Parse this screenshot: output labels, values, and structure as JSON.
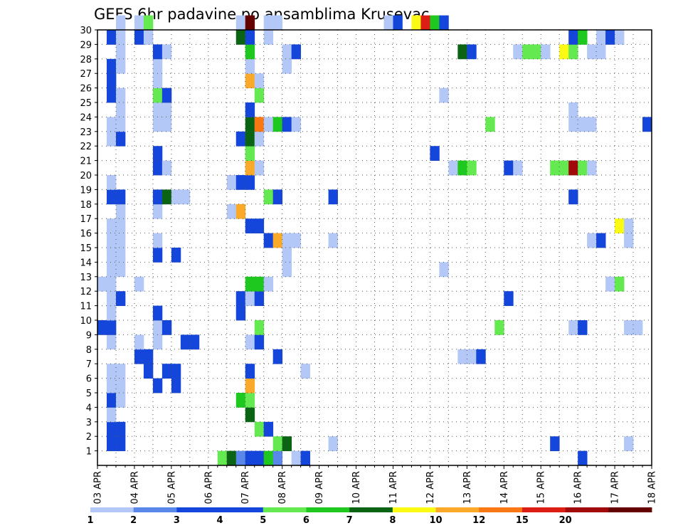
{
  "chart_data": {
    "type": "heatmap",
    "title": "GEFS 6hr padavine po ansamblima Krusevac",
    "xlabel": "",
    "ylabel": "",
    "x_tick_labels": [
      "03 APR",
      "04 APR",
      "05 APR",
      "06 APR",
      "07 APR",
      "08 APR",
      "09 APR",
      "10 APR",
      "11 APR",
      "12 APR",
      "13 APR",
      "14 APR",
      "15 APR",
      "16 APR",
      "17 APR",
      "18 APR"
    ],
    "y_tick_labels": [
      "1",
      "2",
      "3",
      "4",
      "5",
      "6",
      "7",
      "8",
      "9",
      "10",
      "11",
      "12",
      "13",
      "14",
      "15",
      "16",
      "17",
      "18",
      "19",
      "20",
      "21",
      "22",
      "23",
      "24",
      "25",
      "26",
      "27",
      "28",
      "29",
      "30"
    ],
    "x_range_6h_steps": [
      0,
      60
    ],
    "y_range_members": [
      0,
      30
    ],
    "grid": true,
    "colorbar": {
      "position": "bottom",
      "levels": [
        "1",
        "2",
        "3",
        "4",
        "5",
        "6",
        "7",
        "8",
        "10",
        "12",
        "15",
        "20"
      ],
      "colors": [
        "#b4c8f8",
        "#5a87ea",
        "#1446dc",
        "#1446dc",
        "#64ea50",
        "#1ec81e",
        "#0a6414",
        "#fafa14",
        "#faaa28",
        "#fa7814",
        "#dc1e14",
        "#a00a0a",
        "#640000"
      ]
    },
    "cells": [
      {
        "m": 0,
        "t": 13,
        "c": 4
      },
      {
        "m": 0,
        "t": 14,
        "c": 6
      },
      {
        "m": 0,
        "t": 15,
        "c": 1
      },
      {
        "m": 0,
        "t": 16,
        "c": 2
      },
      {
        "m": 0,
        "t": 17,
        "c": 3
      },
      {
        "m": 0,
        "t": 18,
        "c": 5
      },
      {
        "m": 0,
        "t": 19,
        "c": 1
      },
      {
        "m": 0,
        "t": 21,
        "c": 0
      },
      {
        "m": 0,
        "t": 22,
        "c": 3
      },
      {
        "m": 0,
        "t": 52,
        "c": 3
      },
      {
        "m": 1,
        "t": 1,
        "c": 2
      },
      {
        "m": 1,
        "t": 2,
        "c": 2
      },
      {
        "m": 1,
        "t": 19,
        "c": 4
      },
      {
        "m": 1,
        "t": 20,
        "c": 6
      },
      {
        "m": 1,
        "t": 25,
        "c": 0
      },
      {
        "m": 1,
        "t": 49,
        "c": 3
      },
      {
        "m": 1,
        "t": 57,
        "c": 0
      },
      {
        "m": 2,
        "t": 1,
        "c": 3
      },
      {
        "m": 2,
        "t": 2,
        "c": 2
      },
      {
        "m": 2,
        "t": 17,
        "c": 4
      },
      {
        "m": 2,
        "t": 18,
        "c": 3
      },
      {
        "m": 3,
        "t": 1,
        "c": 0
      },
      {
        "m": 3,
        "t": 16,
        "c": 6
      },
      {
        "m": 4,
        "t": 1,
        "c": 3
      },
      {
        "m": 4,
        "t": 2,
        "c": 0
      },
      {
        "m": 4,
        "t": 15,
        "c": 5
      },
      {
        "m": 4,
        "t": 16,
        "c": 4
      },
      {
        "m": 5,
        "t": 1,
        "c": 0
      },
      {
        "m": 5,
        "t": 2,
        "c": 0
      },
      {
        "m": 5,
        "t": 6,
        "c": 3
      },
      {
        "m": 5,
        "t": 8,
        "c": 2
      },
      {
        "m": 5,
        "t": 16,
        "c": 8
      },
      {
        "m": 6,
        "t": 1,
        "c": 0
      },
      {
        "m": 6,
        "t": 2,
        "c": 0
      },
      {
        "m": 6,
        "t": 5,
        "c": 2
      },
      {
        "m": 6,
        "t": 7,
        "c": 2
      },
      {
        "m": 6,
        "t": 8,
        "c": 2
      },
      {
        "m": 6,
        "t": 16,
        "c": 3
      },
      {
        "m": 6,
        "t": 22,
        "c": 0
      },
      {
        "m": 7,
        "t": 4,
        "c": 2
      },
      {
        "m": 7,
        "t": 5,
        "c": 3
      },
      {
        "m": 7,
        "t": 19,
        "c": 3
      },
      {
        "m": 7,
        "t": 39,
        "c": 0
      },
      {
        "m": 7,
        "t": 40,
        "c": 0
      },
      {
        "m": 7,
        "t": 41,
        "c": 2
      },
      {
        "m": 8,
        "t": 1,
        "c": 0
      },
      {
        "m": 8,
        "t": 4,
        "c": 0
      },
      {
        "m": 8,
        "t": 6,
        "c": 0
      },
      {
        "m": 8,
        "t": 9,
        "c": 3
      },
      {
        "m": 8,
        "t": 10,
        "c": 3
      },
      {
        "m": 8,
        "t": 16,
        "c": 0
      },
      {
        "m": 8,
        "t": 17,
        "c": 2
      },
      {
        "m": 9,
        "t": 0,
        "c": 2
      },
      {
        "m": 9,
        "t": 1,
        "c": 2
      },
      {
        "m": 9,
        "t": 6,
        "c": 0
      },
      {
        "m": 9,
        "t": 7,
        "c": 2
      },
      {
        "m": 9,
        "t": 17,
        "c": 4
      },
      {
        "m": 9,
        "t": 43,
        "c": 4
      },
      {
        "m": 9,
        "t": 51,
        "c": 0
      },
      {
        "m": 9,
        "t": 52,
        "c": 3
      },
      {
        "m": 9,
        "t": 57,
        "c": 0
      },
      {
        "m": 9,
        "t": 58,
        "c": 0
      },
      {
        "m": 10,
        "t": 1,
        "c": 0
      },
      {
        "m": 10,
        "t": 6,
        "c": 2
      },
      {
        "m": 10,
        "t": 15,
        "c": 3
      },
      {
        "m": 11,
        "t": 1,
        "c": 0
      },
      {
        "m": 11,
        "t": 2,
        "c": 2
      },
      {
        "m": 11,
        "t": 15,
        "c": 3
      },
      {
        "m": 11,
        "t": 16,
        "c": 0
      },
      {
        "m": 11,
        "t": 17,
        "c": 2
      },
      {
        "m": 11,
        "t": 44,
        "c": 2
      },
      {
        "m": 12,
        "t": 0,
        "c": 0
      },
      {
        "m": 12,
        "t": 1,
        "c": 0
      },
      {
        "m": 12,
        "t": 4,
        "c": 0
      },
      {
        "m": 12,
        "t": 16,
        "c": 5
      },
      {
        "m": 12,
        "t": 17,
        "c": 5
      },
      {
        "m": 12,
        "t": 18,
        "c": 0
      },
      {
        "m": 12,
        "t": 55,
        "c": 0
      },
      {
        "m": 12,
        "t": 56,
        "c": 4
      },
      {
        "m": 13,
        "t": 1,
        "c": 0
      },
      {
        "m": 13,
        "t": 2,
        "c": 0
      },
      {
        "m": 13,
        "t": 20,
        "c": 0
      },
      {
        "m": 13,
        "t": 37,
        "c": 0
      },
      {
        "m": 14,
        "t": 1,
        "c": 0
      },
      {
        "m": 14,
        "t": 2,
        "c": 0
      },
      {
        "m": 14,
        "t": 6,
        "c": 3
      },
      {
        "m": 14,
        "t": 8,
        "c": 2
      },
      {
        "m": 14,
        "t": 20,
        "c": 0
      },
      {
        "m": 15,
        "t": 1,
        "c": 0
      },
      {
        "m": 15,
        "t": 2,
        "c": 0
      },
      {
        "m": 15,
        "t": 6,
        "c": 0
      },
      {
        "m": 15,
        "t": 18,
        "c": 2
      },
      {
        "m": 15,
        "t": 19,
        "c": 8
      },
      {
        "m": 15,
        "t": 20,
        "c": 0
      },
      {
        "m": 15,
        "t": 21,
        "c": 0
      },
      {
        "m": 15,
        "t": 25,
        "c": 0
      },
      {
        "m": 15,
        "t": 53,
        "c": 0
      },
      {
        "m": 15,
        "t": 54,
        "c": 2
      },
      {
        "m": 15,
        "t": 57,
        "c": 0
      },
      {
        "m": 16,
        "t": 1,
        "c": 0
      },
      {
        "m": 16,
        "t": 2,
        "c": 0
      },
      {
        "m": 16,
        "t": 16,
        "c": 3
      },
      {
        "m": 16,
        "t": 17,
        "c": 3
      },
      {
        "m": 16,
        "t": 56,
        "c": 7
      },
      {
        "m": 16,
        "t": 57,
        "c": 0
      },
      {
        "m": 17,
        "t": 2,
        "c": 0
      },
      {
        "m": 17,
        "t": 6,
        "c": 0
      },
      {
        "m": 17,
        "t": 14,
        "c": 0
      },
      {
        "m": 17,
        "t": 15,
        "c": 8
      },
      {
        "m": 18,
        "t": 1,
        "c": 3
      },
      {
        "m": 18,
        "t": 2,
        "c": 2
      },
      {
        "m": 18,
        "t": 6,
        "c": 3
      },
      {
        "m": 18,
        "t": 7,
        "c": 6
      },
      {
        "m": 18,
        "t": 8,
        "c": 0
      },
      {
        "m": 18,
        "t": 9,
        "c": 0
      },
      {
        "m": 18,
        "t": 18,
        "c": 4
      },
      {
        "m": 18,
        "t": 19,
        "c": 2
      },
      {
        "m": 18,
        "t": 25,
        "c": 2
      },
      {
        "m": 18,
        "t": 51,
        "c": 3
      },
      {
        "m": 19,
        "t": 1,
        "c": 0
      },
      {
        "m": 19,
        "t": 14,
        "c": 0
      },
      {
        "m": 19,
        "t": 15,
        "c": 3
      },
      {
        "m": 19,
        "t": 16,
        "c": 3
      },
      {
        "m": 20,
        "t": 6,
        "c": 2
      },
      {
        "m": 20,
        "t": 7,
        "c": 0
      },
      {
        "m": 20,
        "t": 16,
        "c": 8
      },
      {
        "m": 20,
        "t": 17,
        "c": 0
      },
      {
        "m": 20,
        "t": 38,
        "c": 0
      },
      {
        "m": 20,
        "t": 39,
        "c": 5
      },
      {
        "m": 20,
        "t": 40,
        "c": 4
      },
      {
        "m": 20,
        "t": 44,
        "c": 3
      },
      {
        "m": 20,
        "t": 45,
        "c": 0
      },
      {
        "m": 20,
        "t": 49,
        "c": 4
      },
      {
        "m": 20,
        "t": 50,
        "c": 4
      },
      {
        "m": 20,
        "t": 51,
        "c": 11
      },
      {
        "m": 20,
        "t": 52,
        "c": 4
      },
      {
        "m": 20,
        "t": 53,
        "c": 0
      },
      {
        "m": 21,
        "t": 6,
        "c": 2
      },
      {
        "m": 21,
        "t": 16,
        "c": 4
      },
      {
        "m": 21,
        "t": 36,
        "c": 2
      },
      {
        "m": 22,
        "t": 1,
        "c": 0
      },
      {
        "m": 22,
        "t": 2,
        "c": 3
      },
      {
        "m": 22,
        "t": 15,
        "c": 2
      },
      {
        "m": 22,
        "t": 16,
        "c": 6
      },
      {
        "m": 22,
        "t": 17,
        "c": 0
      },
      {
        "m": 23,
        "t": 1,
        "c": 0
      },
      {
        "m": 23,
        "t": 2,
        "c": 0
      },
      {
        "m": 23,
        "t": 6,
        "c": 0
      },
      {
        "m": 23,
        "t": 7,
        "c": 0
      },
      {
        "m": 23,
        "t": 16,
        "c": 6
      },
      {
        "m": 23,
        "t": 17,
        "c": 9
      },
      {
        "m": 23,
        "t": 18,
        "c": 0
      },
      {
        "m": 23,
        "t": 19,
        "c": 5
      },
      {
        "m": 23,
        "t": 20,
        "c": 3
      },
      {
        "m": 23,
        "t": 21,
        "c": 0
      },
      {
        "m": 23,
        "t": 42,
        "c": 4
      },
      {
        "m": 23,
        "t": 51,
        "c": 0
      },
      {
        "m": 23,
        "t": 52,
        "c": 0
      },
      {
        "m": 23,
        "t": 53,
        "c": 0
      },
      {
        "m": 23,
        "t": 59,
        "c": 3
      },
      {
        "m": 24,
        "t": 2,
        "c": 0
      },
      {
        "m": 24,
        "t": 6,
        "c": 0
      },
      {
        "m": 24,
        "t": 7,
        "c": 0
      },
      {
        "m": 24,
        "t": 16,
        "c": 3
      },
      {
        "m": 24,
        "t": 51,
        "c": 0
      },
      {
        "m": 25,
        "t": 1,
        "c": 3
      },
      {
        "m": 25,
        "t": 2,
        "c": 0
      },
      {
        "m": 25,
        "t": 6,
        "c": 4
      },
      {
        "m": 25,
        "t": 7,
        "c": 3
      },
      {
        "m": 25,
        "t": 17,
        "c": 4
      },
      {
        "m": 25,
        "t": 37,
        "c": 0
      },
      {
        "m": 26,
        "t": 1,
        "c": 2
      },
      {
        "m": 26,
        "t": 6,
        "c": 0
      },
      {
        "m": 26,
        "t": 16,
        "c": 8
      },
      {
        "m": 26,
        "t": 17,
        "c": 0
      },
      {
        "m": 27,
        "t": 1,
        "c": 3
      },
      {
        "m": 27,
        "t": 2,
        "c": 0
      },
      {
        "m": 27,
        "t": 6,
        "c": 0
      },
      {
        "m": 27,
        "t": 16,
        "c": 0
      },
      {
        "m": 27,
        "t": 20,
        "c": 0
      },
      {
        "m": 28,
        "t": 2,
        "c": 0
      },
      {
        "m": 28,
        "t": 6,
        "c": 2
      },
      {
        "m": 28,
        "t": 7,
        "c": 0
      },
      {
        "m": 28,
        "t": 16,
        "c": 5
      },
      {
        "m": 28,
        "t": 20,
        "c": 0
      },
      {
        "m": 28,
        "t": 21,
        "c": 2
      },
      {
        "m": 28,
        "t": 39,
        "c": 6
      },
      {
        "m": 28,
        "t": 40,
        "c": 2
      },
      {
        "m": 28,
        "t": 45,
        "c": 0
      },
      {
        "m": 28,
        "t": 46,
        "c": 4
      },
      {
        "m": 28,
        "t": 47,
        "c": 4
      },
      {
        "m": 28,
        "t": 48,
        "c": 0
      },
      {
        "m": 28,
        "t": 50,
        "c": 7
      },
      {
        "m": 28,
        "t": 51,
        "c": 4
      },
      {
        "m": 28,
        "t": 53,
        "c": 0
      },
      {
        "m": 28,
        "t": 54,
        "c": 0
      },
      {
        "m": 29,
        "t": 1,
        "c": 2
      },
      {
        "m": 29,
        "t": 2,
        "c": 0
      },
      {
        "m": 29,
        "t": 4,
        "c": 3
      },
      {
        "m": 29,
        "t": 5,
        "c": 0
      },
      {
        "m": 29,
        "t": 15,
        "c": 6
      },
      {
        "m": 29,
        "t": 16,
        "c": 3
      },
      {
        "m": 29,
        "t": 18,
        "c": 0
      },
      {
        "m": 29,
        "t": 51,
        "c": 3
      },
      {
        "m": 29,
        "t": 52,
        "c": 5
      },
      {
        "m": 29,
        "t": 54,
        "c": 0
      },
      {
        "m": 29,
        "t": 55,
        "c": 2
      },
      {
        "m": 29,
        "t": 56,
        "c": 0
      },
      {
        "m": 30,
        "t": 2,
        "c": 0
      },
      {
        "m": 30,
        "t": 4,
        "c": 0
      },
      {
        "m": 30,
        "t": 5,
        "c": 4
      },
      {
        "m": 30,
        "t": 15,
        "c": 0
      },
      {
        "m": 30,
        "t": 16,
        "c": 12
      },
      {
        "m": 30,
        "t": 18,
        "c": 0
      },
      {
        "m": 30,
        "t": 19,
        "c": 0
      },
      {
        "m": 30,
        "t": 31,
        "c": 0
      },
      {
        "m": 30,
        "t": 32,
        "c": 3
      },
      {
        "m": 30,
        "t": 34,
        "c": 7
      },
      {
        "m": 30,
        "t": 35,
        "c": 10
      },
      {
        "m": 30,
        "t": 36,
        "c": 5
      },
      {
        "m": 30,
        "t": 37,
        "c": 2
      }
    ]
  }
}
